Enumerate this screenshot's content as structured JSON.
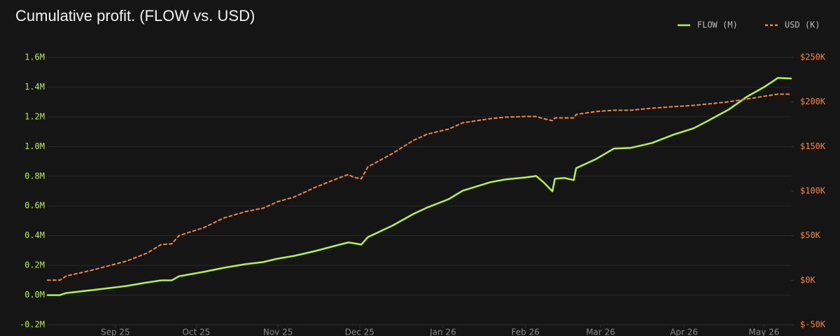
{
  "chart_data": {
    "type": "line",
    "title": "Cumulative profit. (FLOW vs. USD)",
    "x": [
      0,
      0.15,
      0.23,
      0.53,
      0.96,
      1.22,
      1.39,
      1.52,
      1.61,
      1.91,
      2.16,
      2.42,
      2.64,
      2.81,
      3.02,
      3.28,
      3.54,
      3.68,
      3.75,
      3.84,
      3.92,
      4.22,
      4.48,
      4.65,
      4.91,
      5.08,
      5.42,
      5.6,
      5.85,
      5.98,
      6.07,
      6.18,
      6.21,
      6.33,
      6.44,
      6.47,
      6.71,
      6.93,
      7.14,
      7.4,
      7.66,
      7.91,
      8.09,
      8.34,
      8.56,
      8.77,
      8.94,
      9.1
    ],
    "xlim": [
      0,
      9.1
    ],
    "xticks": [
      {
        "value": 0.83,
        "label": "Sep 25"
      },
      {
        "value": 1.82,
        "label": "Oct 25"
      },
      {
        "value": 2.82,
        "label": "Nov 25"
      },
      {
        "value": 3.82,
        "label": "Dec 25"
      },
      {
        "value": 4.84,
        "label": "Jan 26"
      },
      {
        "value": 5.85,
        "label": "Feb 26"
      },
      {
        "value": 6.77,
        "label": "Mar 26"
      },
      {
        "value": 7.79,
        "label": "Apr 26"
      },
      {
        "value": 8.77,
        "label": "May 26"
      }
    ],
    "ylim": [
      -0.2,
      1.6
    ],
    "yticks": [
      {
        "value": -0.2,
        "label": "-0.2M"
      },
      {
        "value": 0,
        "label": "0.0M"
      },
      {
        "value": 0.2,
        "label": "0.2M"
      },
      {
        "value": 0.4,
        "label": "0.4M"
      },
      {
        "value": 0.6,
        "label": "0.6M"
      },
      {
        "value": 0.8,
        "label": "0.8M"
      },
      {
        "value": 1.0,
        "label": "1.0M"
      },
      {
        "value": 1.2,
        "label": "1.2M"
      },
      {
        "value": 1.4,
        "label": "1.4M"
      },
      {
        "value": 1.6,
        "label": "1.6M"
      }
    ],
    "y2lim": [
      -50,
      250
    ],
    "y2ticks": [
      {
        "value": -50,
        "label": "$-50K"
      },
      {
        "value": 0,
        "label": "$0K"
      },
      {
        "value": 50,
        "label": "$50K"
      },
      {
        "value": 100,
        "label": "$100K"
      },
      {
        "value": 150,
        "label": "$150K"
      },
      {
        "value": 200,
        "label": "$200K"
      },
      {
        "value": 250,
        "label": "$250K"
      }
    ],
    "grid": true,
    "legend": "upper right",
    "series": [
      {
        "name": "FLOW (M)",
        "color": "#b8f23e",
        "dashed": false,
        "values": [
          0,
          0,
          0.014,
          0.033,
          0.061,
          0.085,
          0.099,
          0.099,
          0.127,
          0.156,
          0.184,
          0.208,
          0.222,
          0.245,
          0.264,
          0.297,
          0.335,
          0.354,
          0.349,
          0.34,
          0.39,
          0.467,
          0.547,
          0.59,
          0.646,
          0.703,
          0.76,
          0.778,
          0.792,
          0.802,
          0.76,
          0.698,
          0.783,
          0.788,
          0.774,
          0.854,
          0.915,
          0.986,
          0.991,
          1.024,
          1.08,
          1.123,
          1.175,
          1.25,
          1.335,
          1.4,
          1.462,
          1.458
        ]
      },
      {
        "name": "USD (K)",
        "color": "#f0883c",
        "dashed": true,
        "axis": "y2",
        "values": [
          0,
          0,
          4.7,
          11,
          21.2,
          30.6,
          40,
          40.8,
          50.2,
          58.9,
          69.9,
          76.9,
          80.9,
          87.9,
          93.4,
          104.4,
          113.8,
          118.5,
          115.4,
          113.8,
          127.2,
          142.1,
          157,
          164,
          169.6,
          176.6,
          181.3,
          182.9,
          183.7,
          183.7,
          181.3,
          179,
          182.1,
          182.1,
          182.1,
          186,
          189.2,
          190.7,
          190.7,
          193.1,
          194.7,
          196.2,
          197.8,
          200.2,
          203.3,
          206.4,
          208.8,
          208.8
        ]
      }
    ]
  }
}
